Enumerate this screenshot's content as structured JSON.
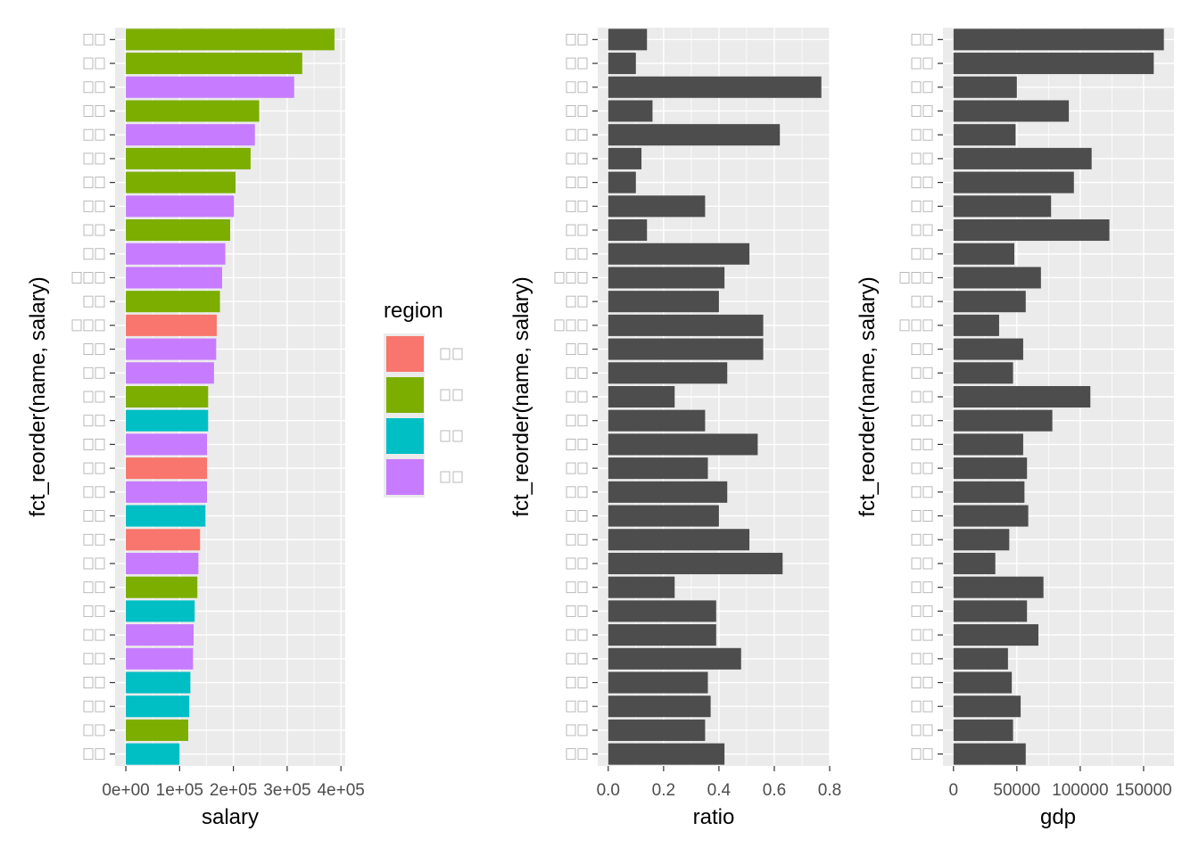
{
  "chart_data": [
    {
      "type": "bar",
      "orientation": "horizontal",
      "panel": "salary",
      "xlabel": "salary",
      "ylabel": "fct_reorder(name, salary)",
      "xlim": [
        -20000,
        408000
      ],
      "xticks": [
        0,
        100000,
        200000,
        300000,
        400000
      ],
      "xtick_labels": [
        "0e+00",
        "1e+05",
        "2e+05",
        "3e+05",
        "4e+05"
      ],
      "category_label_chars": [
        2,
        2,
        2,
        2,
        2,
        2,
        2,
        2,
        2,
        2,
        3,
        2,
        3,
        2,
        2,
        2,
        2,
        2,
        2,
        2,
        2,
        2,
        2,
        2,
        2,
        2,
        2,
        2,
        2,
        2,
        2
      ],
      "values": [
        388000,
        328000,
        313000,
        248000,
        240000,
        232000,
        204000,
        201000,
        194000,
        185000,
        179000,
        175000,
        169000,
        168000,
        164000,
        153000,
        153000,
        151000,
        151000,
        151000,
        148000,
        138000,
        135000,
        133000,
        128000,
        126000,
        125000,
        120000,
        118000,
        116000,
        100000
      ],
      "colors": [
        "#7CAE00",
        "#7CAE00",
        "#C77CFF",
        "#7CAE00",
        "#C77CFF",
        "#7CAE00",
        "#7CAE00",
        "#C77CFF",
        "#7CAE00",
        "#C77CFF",
        "#C77CFF",
        "#7CAE00",
        "#F8766D",
        "#C77CFF",
        "#C77CFF",
        "#7CAE00",
        "#00BFC4",
        "#C77CFF",
        "#F8766D",
        "#C77CFF",
        "#00BFC4",
        "#F8766D",
        "#C77CFF",
        "#7CAE00",
        "#00BFC4",
        "#C77CFF",
        "#C77CFF",
        "#00BFC4",
        "#00BFC4",
        "#7CAE00",
        "#00BFC4"
      ]
    },
    {
      "type": "bar",
      "orientation": "horizontal",
      "panel": "ratio",
      "xlabel": "ratio",
      "ylabel": "fct_reorder(name, salary)",
      "xlim": [
        -0.038,
        0.8
      ],
      "xticks": [
        0.0,
        0.2,
        0.4,
        0.6,
        0.8
      ],
      "xtick_labels": [
        "0.0",
        "0.2",
        "0.4",
        "0.6",
        "0.8"
      ],
      "category_label_chars": [
        2,
        2,
        2,
        2,
        2,
        2,
        2,
        2,
        2,
        2,
        3,
        2,
        3,
        2,
        2,
        2,
        2,
        2,
        2,
        2,
        2,
        2,
        2,
        2,
        2,
        2,
        2,
        2,
        2,
        2,
        2
      ],
      "values": [
        0.14,
        0.1,
        0.77,
        0.16,
        0.62,
        0.12,
        0.1,
        0.35,
        0.14,
        0.51,
        0.42,
        0.4,
        0.56,
        0.56,
        0.43,
        0.24,
        0.35,
        0.54,
        0.36,
        0.43,
        0.4,
        0.51,
        0.63,
        0.24,
        0.39,
        0.39,
        0.48,
        0.36,
        0.37,
        0.35,
        0.42
      ],
      "fill": "#4d4d4d"
    },
    {
      "type": "bar",
      "orientation": "horizontal",
      "panel": "gdp",
      "xlabel": "gdp",
      "ylabel": "fct_reorder(name, salary)",
      "xlim": [
        -8300,
        174000
      ],
      "xticks": [
        0,
        50000,
        100000,
        150000
      ],
      "xtick_labels": [
        "0",
        "50000",
        "100000",
        "150000"
      ],
      "category_label_chars": [
        2,
        2,
        2,
        2,
        2,
        2,
        2,
        2,
        2,
        2,
        3,
        2,
        3,
        2,
        2,
        2,
        2,
        2,
        2,
        2,
        2,
        2,
        2,
        2,
        2,
        2,
        2,
        2,
        2,
        2,
        2
      ],
      "values": [
        166000,
        158000,
        50000,
        91000,
        49000,
        109000,
        95000,
        77000,
        123000,
        48000,
        69000,
        57000,
        36000,
        55000,
        47000,
        108000,
        78000,
        55000,
        58000,
        56000,
        59000,
        44000,
        33000,
        71000,
        58000,
        67000,
        43000,
        46000,
        53000,
        47000,
        57000
      ],
      "fill": "#4d4d4d"
    }
  ],
  "legend": {
    "title": "region",
    "entries": [
      {
        "color": "#F8766D",
        "chars": 2
      },
      {
        "color": "#7CAE00",
        "chars": 2
      },
      {
        "color": "#00BFC4",
        "chars": 2
      },
      {
        "color": "#C77CFF",
        "chars": 2
      }
    ]
  }
}
